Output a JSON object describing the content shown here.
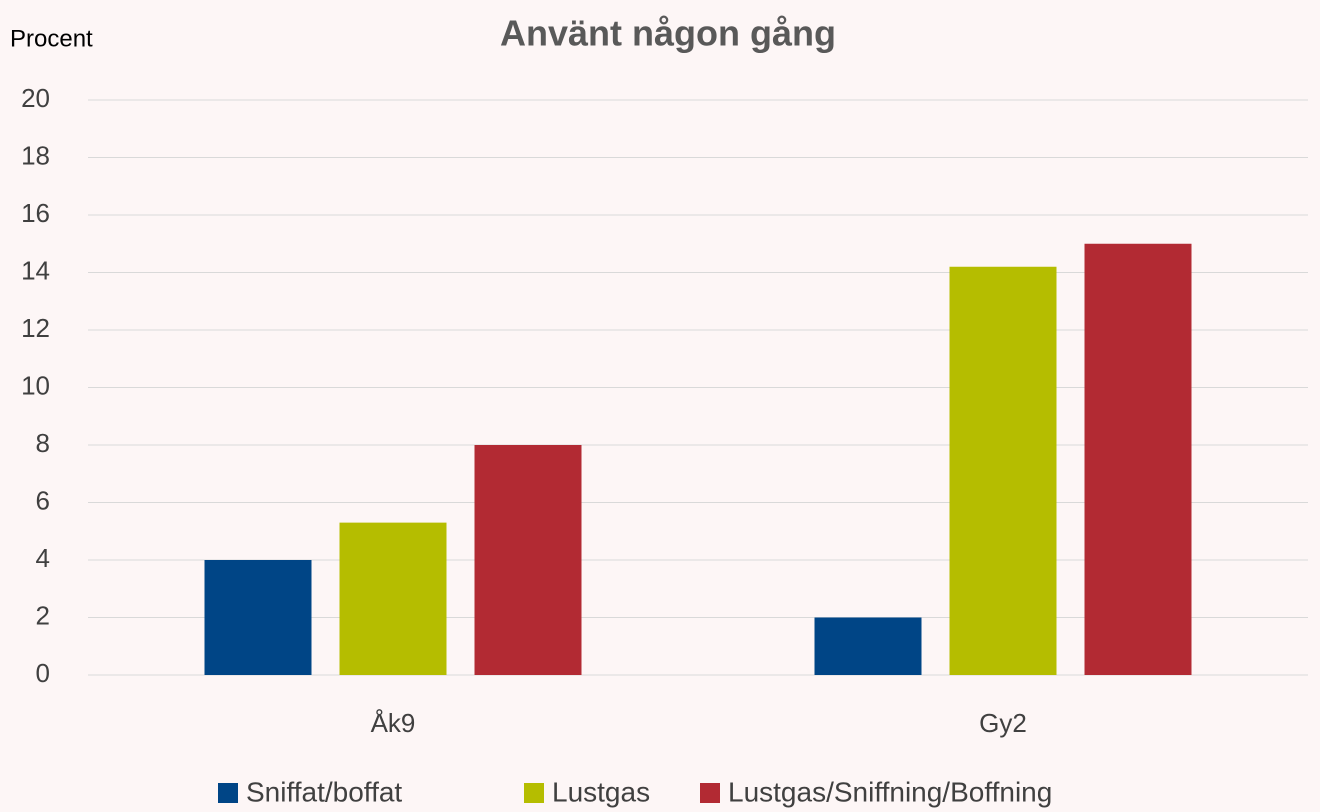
{
  "chart_data": {
    "type": "bar",
    "title": "Använt någon gång",
    "y_label": "Procent",
    "categories": [
      "Åk9",
      "Gy2"
    ],
    "series": [
      {
        "name": "Sniffat/boffat",
        "color": "#004586",
        "values": [
          4,
          2
        ]
      },
      {
        "name": "Lustgas",
        "color": "#b5bd00",
        "values": [
          5.3,
          14.2
        ]
      },
      {
        "name": "Lustgas/Sniffning/Boffning",
        "color": "#b22a33",
        "values": [
          8,
          15
        ]
      }
    ],
    "ylim": [
      0,
      20
    ],
    "yticks": [
      0,
      2,
      4,
      6,
      8,
      10,
      12,
      14,
      16,
      18,
      20
    ],
    "grid": true,
    "legend": "bottom"
  }
}
